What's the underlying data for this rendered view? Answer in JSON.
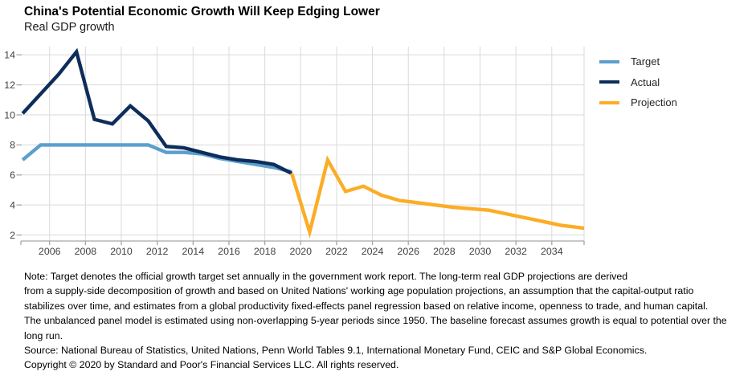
{
  "title": "China's Potential Economic Growth Will Keep Edging Lower",
  "subtitle": "Real GDP growth",
  "legend": [
    {
      "label": "Target",
      "color": "#5C9FCC"
    },
    {
      "label": "Actual",
      "color": "#0D2D5B"
    },
    {
      "label": "Projection",
      "color": "#FBAD27"
    }
  ],
  "axes": {
    "grid_color": "#DADADA",
    "axis_color": "#A6A6A6",
    "label_color": "#404040"
  },
  "chart_data": {
    "type": "line",
    "title": "China's Potential Economic Growth Will Keep Edging Lower",
    "subtitle": "Real GDP growth",
    "xlabel": "",
    "ylabel": "",
    "grid": true,
    "legend_position": "top-right",
    "xlim": [
      2003.9,
      2035.3
    ],
    "ylim": [
      1.6,
      14.55
    ],
    "x_ticks": [
      2006,
      2008,
      2010,
      2012,
      2014,
      2016,
      2018,
      2020,
      2022,
      2024,
      2026,
      2028,
      2030,
      2032,
      2034
    ],
    "y_ticks": [
      2,
      4,
      6,
      8,
      10,
      12,
      14
    ],
    "series": [
      {
        "name": "Target",
        "color": "#5C9FCC",
        "years": [
          2004,
          2005,
          2006,
          2007,
          2008,
          2009,
          2010,
          2011,
          2012,
          2013,
          2014,
          2015,
          2016,
          2017,
          2018,
          2019
        ],
        "values": [
          7.0,
          8.0,
          8.0,
          8.0,
          8.0,
          8.0,
          8.0,
          8.0,
          7.5,
          7.5,
          7.4,
          7.1,
          6.9,
          6.7,
          6.5,
          6.2
        ]
      },
      {
        "name": "Actual",
        "color": "#0D2D5B",
        "years": [
          2004,
          2005,
          2006,
          2007,
          2008,
          2009,
          2010,
          2011,
          2012,
          2013,
          2014,
          2015,
          2016,
          2017,
          2018,
          2019
        ],
        "values": [
          10.1,
          11.4,
          12.7,
          14.2,
          9.7,
          9.4,
          10.6,
          9.6,
          7.9,
          7.8,
          7.5,
          7.2,
          7.0,
          6.9,
          6.7,
          6.1
        ]
      },
      {
        "name": "Projection",
        "color": "#FBAD27",
        "years": [
          2019,
          2020,
          2021,
          2022,
          2023,
          2024,
          2025,
          2026,
          2027,
          2028,
          2029,
          2030,
          2031,
          2032,
          2033,
          2034,
          2035,
          2036
        ],
        "values": [
          6.1,
          2.2,
          7.0,
          4.9,
          5.25,
          4.65,
          4.3,
          4.15,
          4.0,
          3.85,
          3.75,
          3.65,
          3.4,
          3.15,
          2.9,
          2.65,
          2.5,
          2.35
        ]
      }
    ]
  },
  "notes": {
    "lines": [
      "Note: Target denotes the official growth target set annually in the government work report. The long-term real GDP projections are derived",
      "from a supply-side decomposition of growth and based on United Nations' working age population projections, an assumption that the capital-output ratio",
      "stabilizes over time, and estimates from a global productivity fixed-effects panel regression based on relative income, openness to trade, and human capital.",
      "The unbalanced panel model is estimated using non-overlapping 5-year periods since 1950. The baseline forecast assumes growth is equal to potential over the",
      "long run."
    ],
    "source": "Source: National Bureau of Statistics, United Nations, Penn World Tables 9.1, International Monetary Fund, CEIC and S&P Global Economics.",
    "copyright": "Copyright © 2020 by Standard and Poor's Financial Services LLC. All rights reserved."
  }
}
